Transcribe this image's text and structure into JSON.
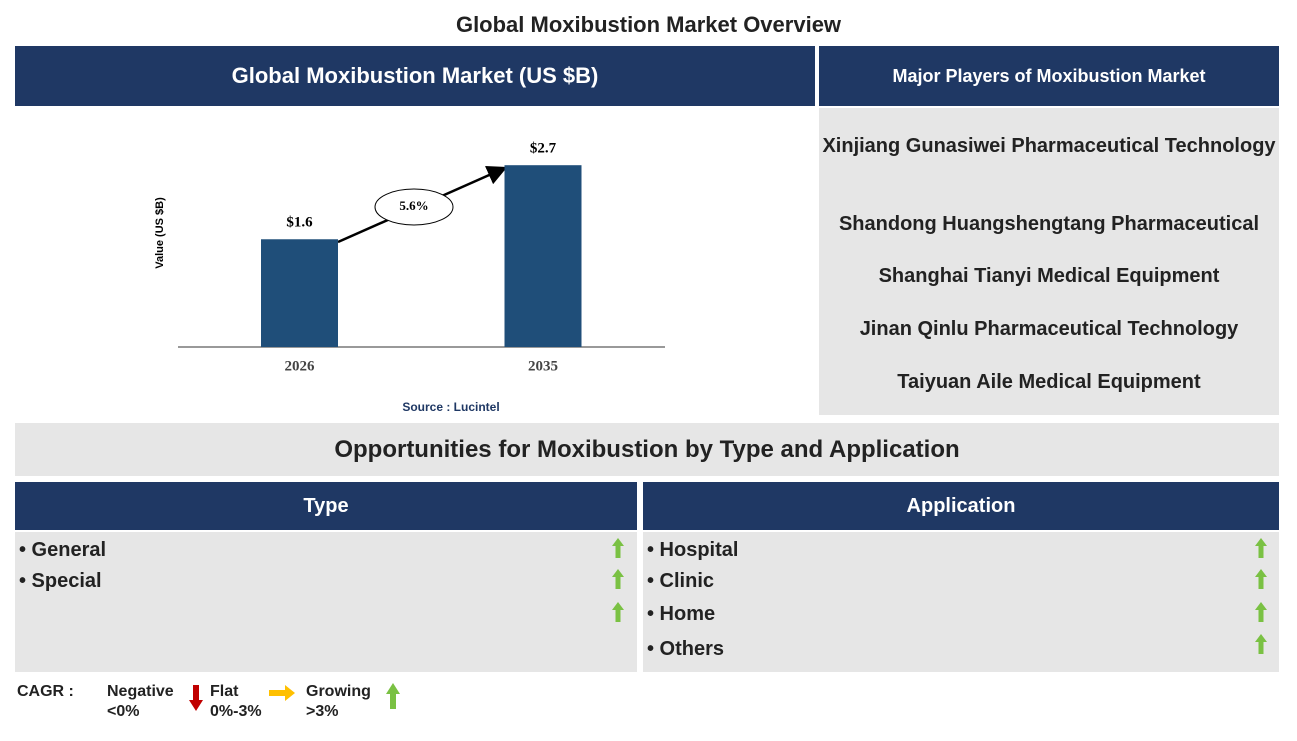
{
  "header": {
    "title": "Global Moxibustion Market Overview"
  },
  "chart_data": {
    "type": "bar",
    "title": "Global Moxibustion Market (US $B)",
    "y_label": "Value (US $B)",
    "categories": [
      "2026",
      "2035"
    ],
    "values": [
      1.6,
      2.7
    ],
    "value_labels": [
      "$1.6",
      "$2.7"
    ],
    "color": "#1f4e79",
    "ylim": [
      0,
      3
    ],
    "annotation": "5.6%",
    "source": "Source : Lucintel"
  },
  "players": {
    "title": "Major Players of Moxibustion Market",
    "items": [
      "Xinjiang Gunasiwei Pharmaceutical Technology",
      "Shandong Huangshengtang Pharmaceutical",
      "Shanghai Tianyi Medical Equipment",
      "Jinan Qinlu Pharmaceutical Technology",
      "Taiyuan Aile Medical Equipment"
    ]
  },
  "opportunities": {
    "title": "Opportunities for Moxibustion by Type and Application",
    "type": {
      "title": "Type",
      "items": [
        "• General",
        "• Special"
      ]
    },
    "application": {
      "title": "Application",
      "items": [
        "• Hospital",
        "• Clinic",
        "• Home",
        "• Others"
      ]
    }
  },
  "legend": {
    "title": "CAGR :",
    "negative": "Negative",
    "negative_range": "<0%",
    "flat": "Flat",
    "flat_range": "0%-3%",
    "growing": "Growing",
    "growing_range": ">3%"
  }
}
